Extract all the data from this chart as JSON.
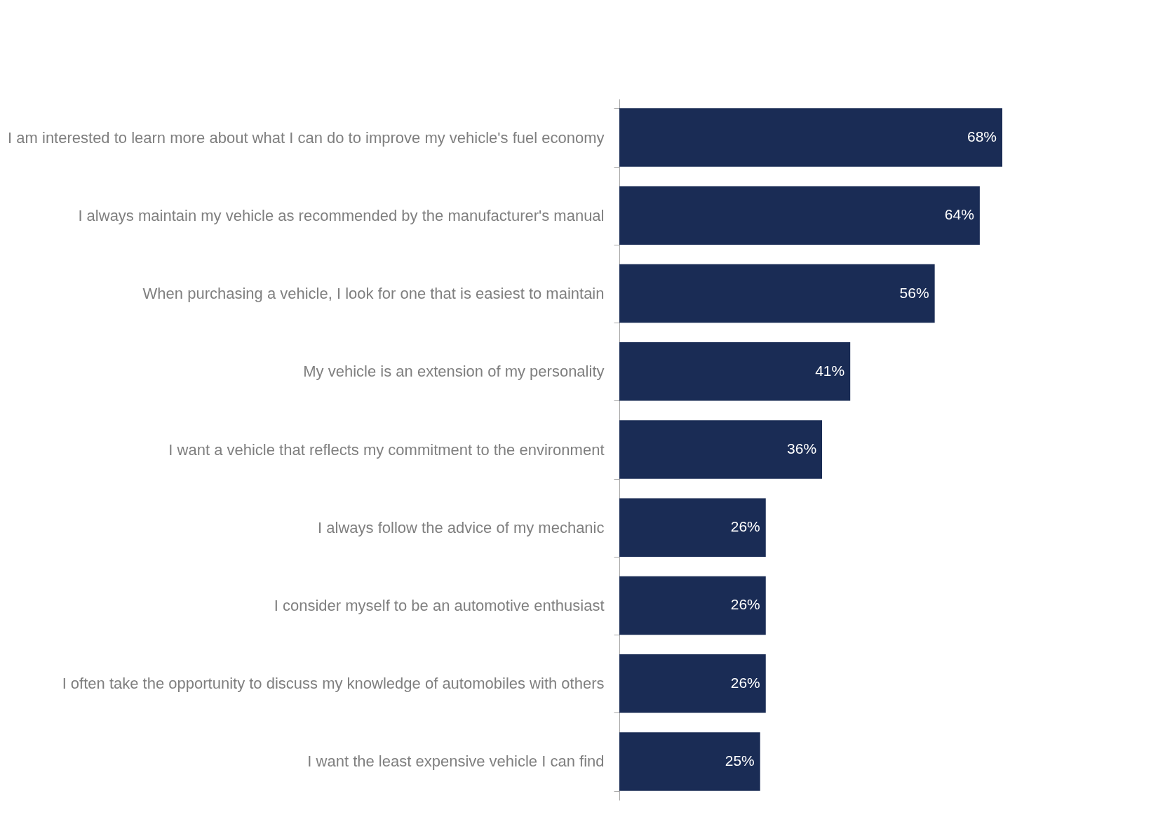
{
  "chart_data": {
    "type": "bar",
    "orientation": "horizontal",
    "data_labels": true,
    "color": "#1a2c55",
    "categories": [
      "I am interested to learn more about what I can do to improve my vehicle's fuel economy",
      "I always maintain my vehicle as recommended by the manufacturer's manual",
      "When purchasing a vehicle, I look for one that is easiest to maintain",
      "My vehicle is an extension of my personality",
      "I want a vehicle that reflects my commitment to the environment",
      "I always follow the advice of my mechanic",
      "I consider myself to be an automotive enthusiast",
      "I often take the opportunity to discuss my knowledge of automobiles with others",
      "I want the least expensive vehicle I can find"
    ],
    "values": [
      68,
      64,
      56,
      41,
      36,
      26,
      26,
      26,
      25
    ],
    "value_labels": [
      "68%",
      "64%",
      "56%",
      "41%",
      "36%",
      "26%",
      "26%",
      "26%",
      "25%"
    ]
  }
}
